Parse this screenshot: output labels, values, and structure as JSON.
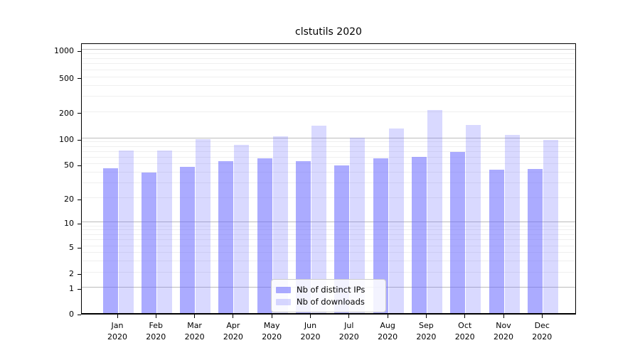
{
  "title": "clstutils 2020",
  "legend": {
    "items": [
      {
        "label": "Nb of distinct IPs"
      },
      {
        "label": "Nb of downloads"
      }
    ]
  },
  "colors": {
    "bar_base": "#6666ff",
    "series1_fill": "rgba(102,102,255,0.55)",
    "series2_fill": "rgba(102,102,255,0.25)",
    "major_gridline": "#bcbcbc",
    "minor_gridline": "#efefef",
    "spine": "#000000"
  },
  "chart_data": {
    "type": "bar",
    "title": "clstutils 2020",
    "categories": [
      "Jan 2020",
      "Feb 2020",
      "Mar 2020",
      "Apr 2020",
      "May 2020",
      "Jun 2020",
      "Jul 2020",
      "Aug 2020",
      "Sep 2020",
      "Oct 2020",
      "Nov 2020",
      "Dec 2020"
    ],
    "series": [
      {
        "name": "Nb of distinct IPs",
        "values": [
          45,
          40,
          46,
          54,
          58,
          54,
          48,
          58,
          61,
          70,
          43,
          44
        ]
      },
      {
        "name": "Nb of downloads",
        "values": [
          72,
          72,
          98,
          84,
          105,
          140,
          101,
          130,
          210,
          143,
          110,
          97
        ]
      }
    ],
    "yscale": "log-with-zero",
    "y_tick_values": [
      0,
      1,
      2,
      5,
      10,
      20,
      50,
      100,
      200,
      500,
      1000
    ],
    "y_tick_labels": [
      "0",
      "1",
      "2",
      "5",
      "10",
      "20",
      "50",
      "100",
      "200",
      "500",
      "1000"
    ],
    "ylim": [
      0,
      1100
    ],
    "grid": true,
    "legend_position": "lower center"
  }
}
